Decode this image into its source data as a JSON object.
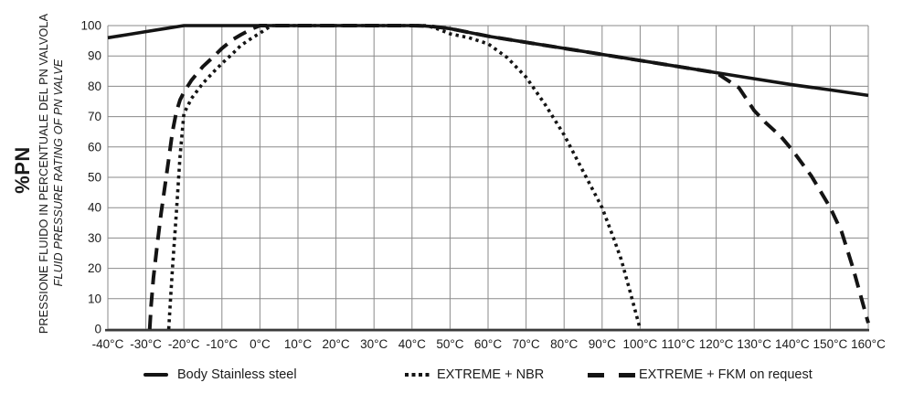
{
  "y_axis": {
    "title_bold": "%PN",
    "title_line1": "PRESSIONE FLUIDO IN PERCENTUALE DEL PN VALVOLA",
    "title_line2": "FLUID PRESSURE RATING OF PN VALVE"
  },
  "legend": [
    {
      "label": "Body Stainless steel",
      "style": "solid"
    },
    {
      "label": "EXTREME + NBR",
      "style": "dotted"
    },
    {
      "label": "EXTREME + FKM on request",
      "style": "dashed"
    }
  ],
  "chart_data": {
    "type": "line",
    "title": "",
    "xlabel": "",
    "ylabel": "%PN — PRESSIONE FLUIDO IN PERCENTUALE DEL PN VALVOLA / FLUID PRESSURE RATING OF PN VALVE",
    "xlim": [
      -40,
      160
    ],
    "ylim": [
      0,
      100
    ],
    "grid": true,
    "legend_position": "bottom",
    "colors": {
      "line": "#141414",
      "grid": "#8a8a8a",
      "axis": "#3b3b3b",
      "text": "#1b1b1b"
    },
    "x_tick_values": [
      -40,
      -30,
      -20,
      -10,
      0,
      10,
      20,
      30,
      40,
      50,
      60,
      70,
      80,
      90,
      100,
      110,
      120,
      130,
      140,
      150,
      160
    ],
    "x_tick_labels": [
      "-40°C",
      "-30°C",
      "-20°C",
      "-10°C",
      "0°C",
      "10°C",
      "20°C",
      "30°C",
      "40°C",
      "50°C",
      "60°C",
      "70°C",
      "80°C",
      "90°C",
      "100°C",
      "110°C",
      "120°C",
      "130°C",
      "140°C",
      "150°C",
      "160°C"
    ],
    "y_tick_values": [
      0,
      10,
      20,
      30,
      40,
      50,
      60,
      70,
      80,
      90,
      100
    ],
    "y_tick_labels": [
      "0",
      "10",
      "20",
      "30",
      "40",
      "50",
      "60",
      "70",
      "80",
      "90",
      "100"
    ],
    "series": [
      {
        "name": "Body Stainless steel",
        "style": "solid",
        "points": [
          [
            -40,
            96
          ],
          [
            -35,
            97
          ],
          [
            -30,
            98
          ],
          [
            -25,
            99
          ],
          [
            -20,
            100
          ],
          [
            -10,
            100
          ],
          [
            0,
            100
          ],
          [
            10,
            100
          ],
          [
            20,
            100
          ],
          [
            30,
            100
          ],
          [
            40,
            100
          ],
          [
            42,
            100
          ],
          [
            46,
            99.6
          ],
          [
            50,
            99
          ],
          [
            60,
            96.5
          ],
          [
            70,
            94.5
          ],
          [
            80,
            92.5
          ],
          [
            90,
            90.5
          ],
          [
            100,
            88.5
          ],
          [
            110,
            86.5
          ],
          [
            120,
            84.5
          ],
          [
            130,
            82.5
          ],
          [
            140,
            80.5
          ],
          [
            150,
            78.8
          ],
          [
            160,
            77
          ]
        ]
      },
      {
        "name": "EXTREME + NBR",
        "style": "dotted",
        "points": [
          [
            -24,
            0
          ],
          [
            -23.6,
            8
          ],
          [
            -23,
            20
          ],
          [
            -22,
            38
          ],
          [
            -21,
            57
          ],
          [
            -20,
            71
          ],
          [
            -18,
            76
          ],
          [
            -15,
            81
          ],
          [
            -12,
            85
          ],
          [
            -10,
            87.5
          ],
          [
            -7,
            91
          ],
          [
            -5,
            93.5
          ],
          [
            -2,
            96
          ],
          [
            0,
            97.5
          ],
          [
            3,
            100
          ],
          [
            10,
            100
          ],
          [
            20,
            100
          ],
          [
            30,
            100
          ],
          [
            40,
            100
          ],
          [
            44,
            100
          ],
          [
            47,
            98.8
          ],
          [
            50,
            97.3
          ],
          [
            55,
            96
          ],
          [
            60,
            94
          ],
          [
            65,
            89.5
          ],
          [
            70,
            83
          ],
          [
            75,
            74
          ],
          [
            80,
            64
          ],
          [
            85,
            52
          ],
          [
            90,
            40
          ],
          [
            93,
            30
          ],
          [
            95,
            23
          ],
          [
            97,
            14
          ],
          [
            100,
            0
          ]
        ]
      },
      {
        "name": "EXTREME + FKM on request",
        "style": "dashed",
        "points": [
          [
            -29,
            0
          ],
          [
            -28.6,
            8
          ],
          [
            -28,
            17
          ],
          [
            -27,
            28
          ],
          [
            -26,
            38
          ],
          [
            -25,
            47
          ],
          [
            -24,
            56
          ],
          [
            -23,
            65
          ],
          [
            -22,
            71.5
          ],
          [
            -21,
            75.5
          ],
          [
            -20,
            78
          ],
          [
            -18,
            82
          ],
          [
            -15,
            86.5
          ],
          [
            -12,
            90
          ],
          [
            -10,
            92.5
          ],
          [
            -7,
            95.5
          ],
          [
            -5,
            97
          ],
          [
            -2,
            99
          ],
          [
            0,
            100
          ],
          [
            10,
            100
          ],
          [
            20,
            100
          ],
          [
            30,
            100
          ],
          [
            40,
            100
          ],
          [
            45,
            99.8
          ],
          [
            50,
            99
          ],
          [
            60,
            96.5
          ],
          [
            70,
            94.5
          ],
          [
            80,
            92.5
          ],
          [
            90,
            90.5
          ],
          [
            100,
            88.5
          ],
          [
            110,
            86.5
          ],
          [
            120,
            84.5
          ],
          [
            123,
            82
          ],
          [
            126,
            79.5
          ],
          [
            130,
            72
          ],
          [
            133,
            68
          ],
          [
            137,
            63.5
          ],
          [
            140,
            59
          ],
          [
            145,
            50.5
          ],
          [
            150,
            40
          ],
          [
            153,
            32
          ],
          [
            156,
            20
          ],
          [
            158,
            11
          ],
          [
            160,
            2
          ]
        ]
      }
    ]
  }
}
